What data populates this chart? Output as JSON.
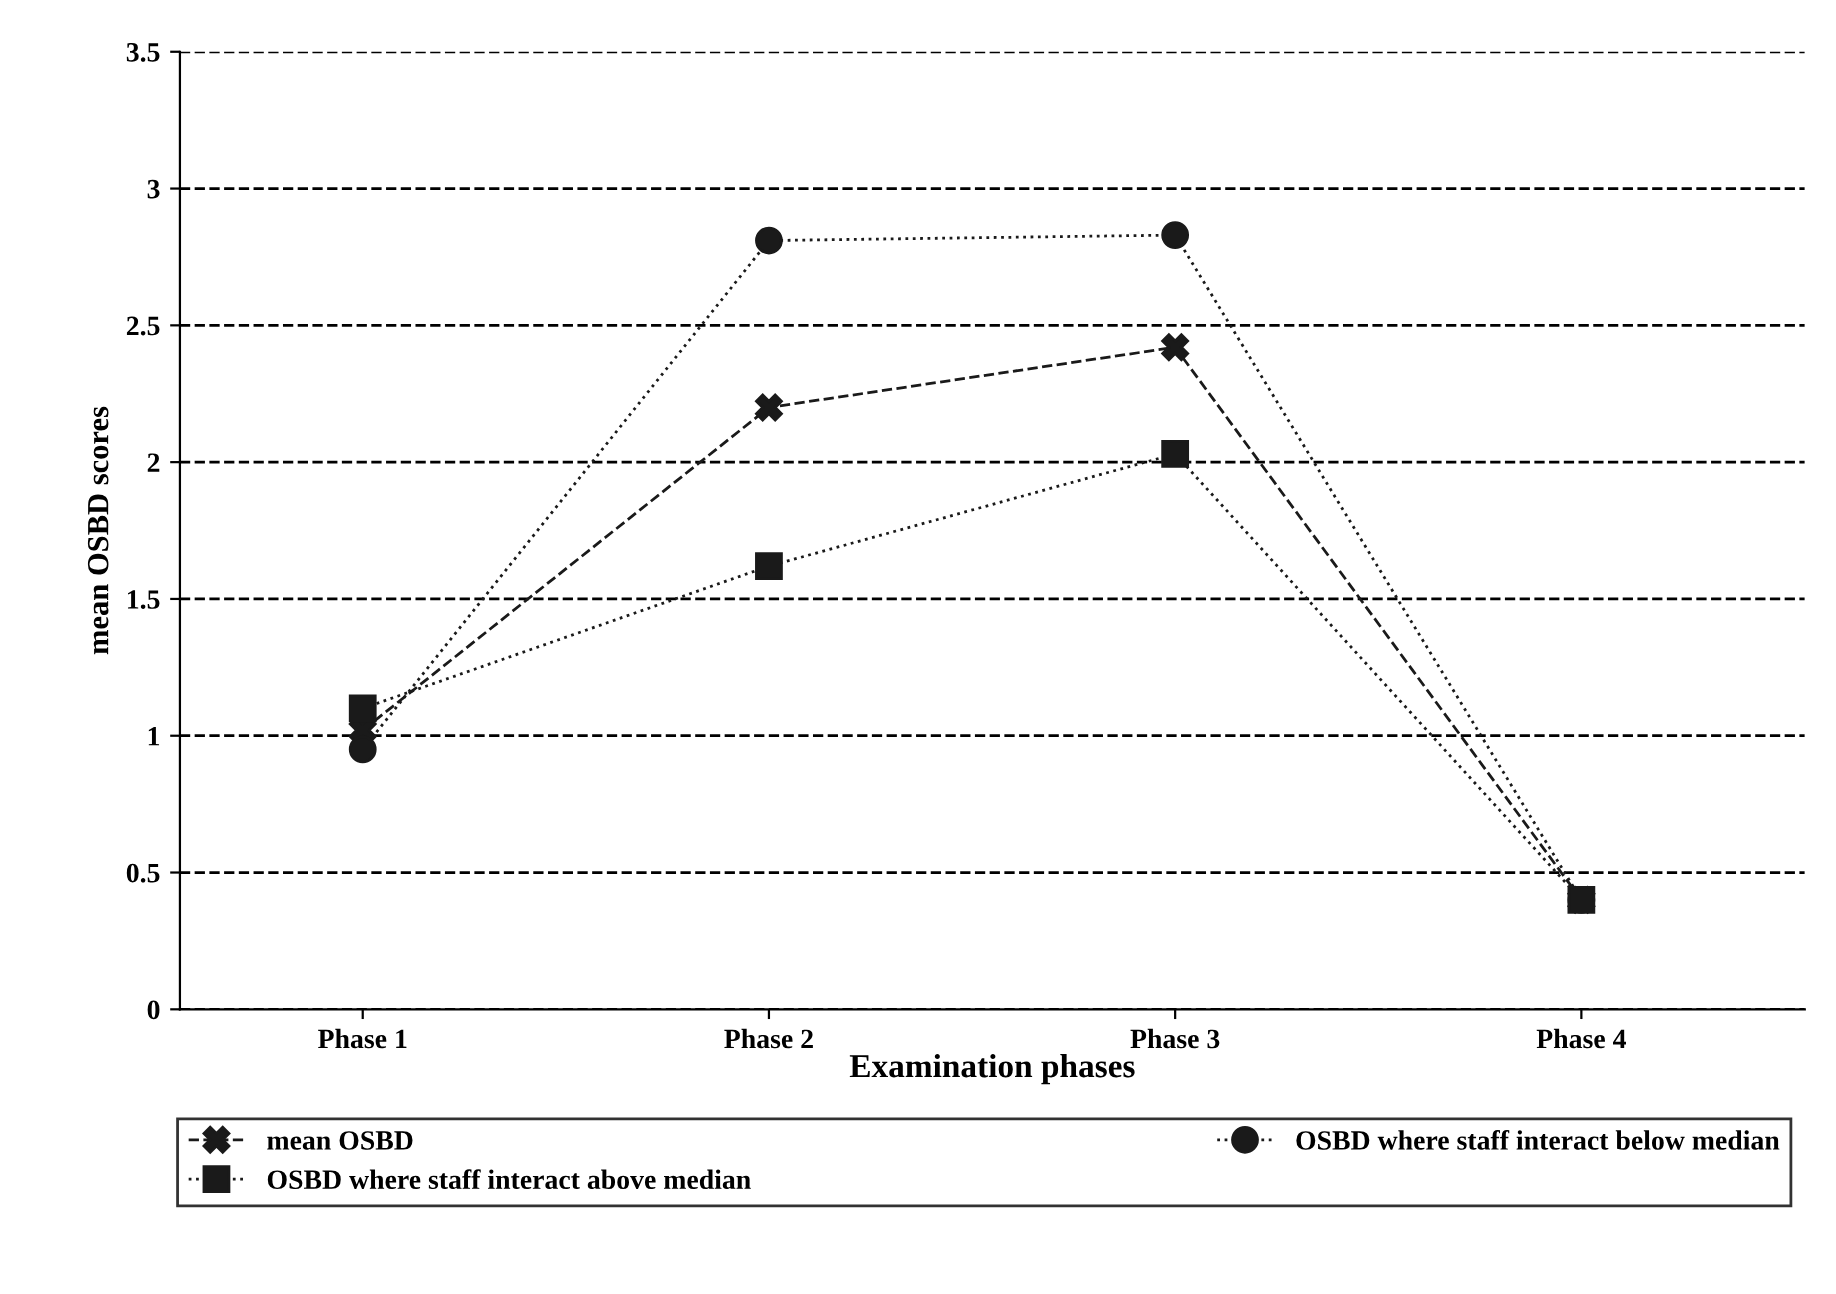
{
  "chart_data": {
    "type": "line",
    "xlabel": "Examination phases",
    "ylabel": "mean OSBD scores",
    "categories": [
      "Phase 1",
      "Phase 2",
      "Phase 3",
      "Phase 4"
    ],
    "series": [
      {
        "name": "mean OSBD",
        "color": "#1a1a1a",
        "values": [
          1.02,
          2.2,
          2.42,
          0.4
        ],
        "marker": "cross",
        "line_style": "dashed"
      },
      {
        "name": "OSBD where staff interact below median",
        "color": "#1a1a1a",
        "values": [
          0.95,
          2.81,
          2.83,
          0.4
        ],
        "marker": "circle",
        "line_style": "dotted"
      },
      {
        "name": "OSBD where staff interact above median",
        "color": "#1a1a1a",
        "values": [
          1.1,
          1.62,
          2.03,
          0.4
        ],
        "marker": "square",
        "line_style": "dotted"
      }
    ],
    "ylim": [
      0,
      3.5
    ],
    "yticks": [
      0,
      0.5,
      1,
      1.5,
      2,
      2.5,
      3,
      3.5
    ],
    "grid": "y",
    "legend": "bottom"
  }
}
